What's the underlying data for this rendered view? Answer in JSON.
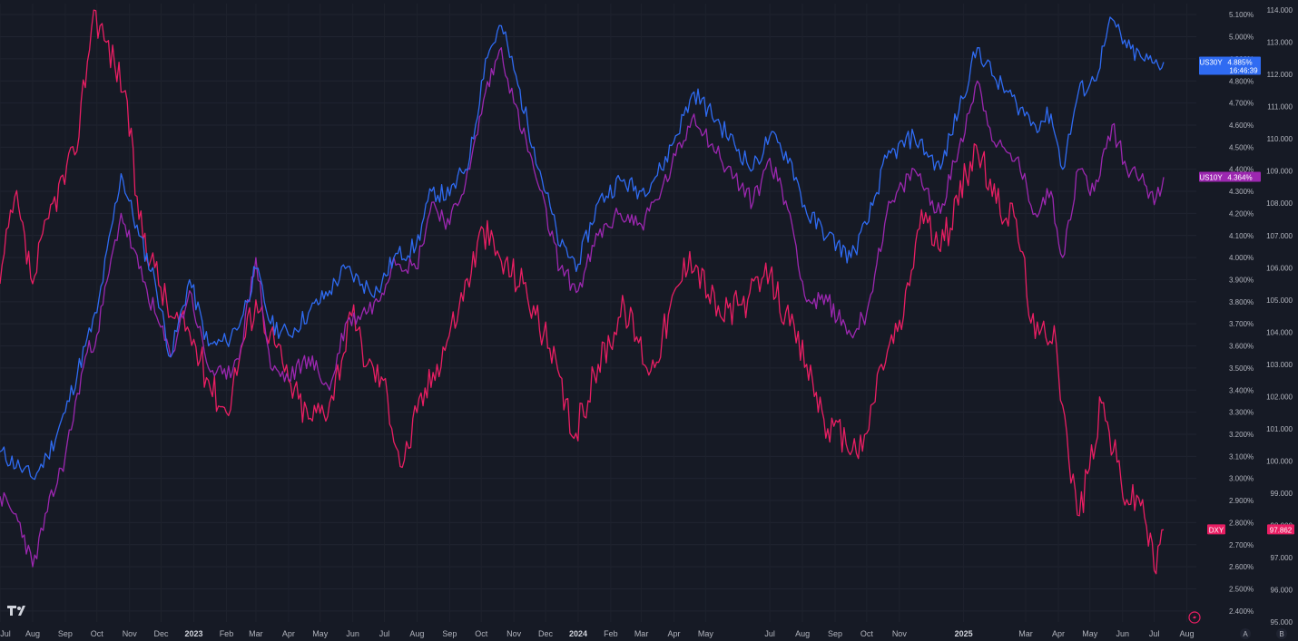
{
  "chart_data": {
    "type": "line",
    "x_axis": {
      "labels": [
        "Jul",
        "Aug",
        "Sep",
        "Oct",
        "Nov",
        "Dec",
        "2023",
        "Feb",
        "Mar",
        "Apr",
        "May",
        "Jun",
        "Jul",
        "Aug",
        "Sep",
        "Oct",
        "Nov",
        "Dec",
        "2024",
        "Feb",
        "Mar",
        "Apr",
        "May",
        "Jul",
        "Aug",
        "Sep",
        "Oct",
        "Nov",
        "2025",
        "Mar",
        "Apr",
        "May",
        "Jun",
        "Jul",
        "Aug"
      ],
      "year_labels": [
        "2023",
        "2024",
        "2025"
      ],
      "start": "2022-07-01",
      "end": "2025-08-10"
    },
    "y_axis_yield": {
      "unit": "%",
      "ylim": [
        2.35,
        5.15
      ],
      "ticks": [
        "5.100%",
        "5.000%",
        "4.900%",
        "4.800%",
        "4.700%",
        "4.600%",
        "4.500%",
        "4.400%",
        "4.300%",
        "4.200%",
        "4.100%",
        "4.000%",
        "3.900%",
        "3.800%",
        "3.700%",
        "3.600%",
        "3.500%",
        "3.400%",
        "3.300%",
        "3.200%",
        "3.100%",
        "3.000%",
        "2.900%",
        "2.800%",
        "2.700%",
        "2.600%",
        "2.500%",
        "2.400%"
      ]
    },
    "y_axis_index": {
      "ylim": [
        95.0,
        114.2
      ],
      "ticks": [
        "114.000",
        "113.000",
        "112.000",
        "111.000",
        "110.000",
        "109.000",
        "108.000",
        "107.000",
        "106.000",
        "105.000",
        "104.000",
        "103.000",
        "102.000",
        "101.000",
        "100.000",
        "99.000",
        "98.000",
        "97.000",
        "96.000",
        "95.000"
      ]
    },
    "grid": true,
    "series": [
      {
        "name": "US30Y",
        "axis": "yield",
        "color": "#2f6bf2",
        "last_label": "4.885%",
        "countdown": "16:46:39",
        "points": [
          [
            "2022-07-01",
            3.12
          ],
          [
            "2022-07-20",
            3.05
          ],
          [
            "2022-08-01",
            3.0
          ],
          [
            "2022-08-15",
            3.1
          ],
          [
            "2022-09-01",
            3.3
          ],
          [
            "2022-09-20",
            3.6
          ],
          [
            "2022-10-01",
            3.75
          ],
          [
            "2022-10-24",
            4.38
          ],
          [
            "2022-11-10",
            4.1
          ],
          [
            "2022-11-25",
            3.9
          ],
          [
            "2022-12-10",
            3.55
          ],
          [
            "2022-12-28",
            3.9
          ],
          [
            "2023-01-15",
            3.6
          ],
          [
            "2023-02-01",
            3.62
          ],
          [
            "2023-02-15",
            3.72
          ],
          [
            "2023-03-01",
            3.95
          ],
          [
            "2023-03-15",
            3.7
          ],
          [
            "2023-04-01",
            3.65
          ],
          [
            "2023-04-20",
            3.75
          ],
          [
            "2023-05-10",
            3.85
          ],
          [
            "2023-05-25",
            3.95
          ],
          [
            "2023-06-10",
            3.88
          ],
          [
            "2023-06-25",
            3.85
          ],
          [
            "2023-07-10",
            4.0
          ],
          [
            "2023-07-31",
            4.05
          ],
          [
            "2023-08-15",
            4.3
          ],
          [
            "2023-09-01",
            4.28
          ],
          [
            "2023-09-20",
            4.45
          ],
          [
            "2023-10-05",
            4.9
          ],
          [
            "2023-10-20",
            5.05
          ],
          [
            "2023-11-01",
            4.85
          ],
          [
            "2023-11-20",
            4.5
          ],
          [
            "2023-12-15",
            4.05
          ],
          [
            "2024-01-01",
            3.97
          ],
          [
            "2024-01-20",
            4.25
          ],
          [
            "2024-02-10",
            4.35
          ],
          [
            "2024-03-01",
            4.3
          ],
          [
            "2024-03-20",
            4.4
          ],
          [
            "2024-04-20",
            4.75
          ],
          [
            "2024-05-15",
            4.6
          ],
          [
            "2024-06-15",
            4.4
          ],
          [
            "2024-07-01",
            4.55
          ],
          [
            "2024-07-20",
            4.45
          ],
          [
            "2024-08-05",
            4.2
          ],
          [
            "2024-08-25",
            4.1
          ],
          [
            "2024-09-16",
            4.0
          ],
          [
            "2024-10-01",
            4.15
          ],
          [
            "2024-10-20",
            4.45
          ],
          [
            "2024-11-15",
            4.55
          ],
          [
            "2024-12-10",
            4.4
          ],
          [
            "2025-01-14",
            4.95
          ],
          [
            "2025-02-01",
            4.8
          ],
          [
            "2025-02-20",
            4.7
          ],
          [
            "2025-03-10",
            4.6
          ],
          [
            "2025-03-25",
            4.65
          ],
          [
            "2025-04-05",
            4.4
          ],
          [
            "2025-04-20",
            4.75
          ],
          [
            "2025-05-05",
            4.8
          ],
          [
            "2025-05-22",
            5.08
          ],
          [
            "2025-06-05",
            4.95
          ],
          [
            "2025-06-20",
            4.9
          ],
          [
            "2025-07-01",
            4.88
          ],
          [
            "2025-07-10",
            4.885
          ]
        ]
      },
      {
        "name": "US10Y",
        "axis": "yield",
        "color": "#9c27b0",
        "last_label": "4.364%",
        "points": [
          [
            "2022-07-01",
            2.92
          ],
          [
            "2022-07-20",
            2.8
          ],
          [
            "2022-08-01",
            2.6
          ],
          [
            "2022-08-15",
            2.85
          ],
          [
            "2022-09-01",
            3.1
          ],
          [
            "2022-09-20",
            3.55
          ],
          [
            "2022-10-01",
            3.65
          ],
          [
            "2022-10-24",
            4.2
          ],
          [
            "2022-11-10",
            3.95
          ],
          [
            "2022-11-25",
            3.75
          ],
          [
            "2022-12-10",
            3.55
          ],
          [
            "2022-12-28",
            3.85
          ],
          [
            "2023-01-15",
            3.5
          ],
          [
            "2023-02-01",
            3.45
          ],
          [
            "2023-02-15",
            3.6
          ],
          [
            "2023-03-01",
            4.0
          ],
          [
            "2023-03-15",
            3.5
          ],
          [
            "2023-04-01",
            3.45
          ],
          [
            "2023-04-20",
            3.55
          ],
          [
            "2023-05-10",
            3.4
          ],
          [
            "2023-05-25",
            3.7
          ],
          [
            "2023-06-10",
            3.75
          ],
          [
            "2023-06-25",
            3.8
          ],
          [
            "2023-07-10",
            4.0
          ],
          [
            "2023-07-31",
            3.95
          ],
          [
            "2023-08-15",
            4.25
          ],
          [
            "2023-09-01",
            4.15
          ],
          [
            "2023-09-20",
            4.4
          ],
          [
            "2023-10-05",
            4.75
          ],
          [
            "2023-10-20",
            4.95
          ],
          [
            "2023-11-01",
            4.7
          ],
          [
            "2023-11-20",
            4.4
          ],
          [
            "2023-12-15",
            3.95
          ],
          [
            "2024-01-01",
            3.85
          ],
          [
            "2024-01-20",
            4.1
          ],
          [
            "2024-02-10",
            4.2
          ],
          [
            "2024-03-01",
            4.15
          ],
          [
            "2024-03-20",
            4.3
          ],
          [
            "2024-04-20",
            4.65
          ],
          [
            "2024-05-15",
            4.45
          ],
          [
            "2024-06-15",
            4.25
          ],
          [
            "2024-07-01",
            4.45
          ],
          [
            "2024-07-20",
            4.2
          ],
          [
            "2024-08-05",
            3.8
          ],
          [
            "2024-08-25",
            3.8
          ],
          [
            "2024-09-16",
            3.65
          ],
          [
            "2024-10-01",
            3.75
          ],
          [
            "2024-10-20",
            4.2
          ],
          [
            "2024-11-15",
            4.4
          ],
          [
            "2024-12-10",
            4.2
          ],
          [
            "2025-01-14",
            4.8
          ],
          [
            "2025-02-01",
            4.5
          ],
          [
            "2025-02-20",
            4.45
          ],
          [
            "2025-03-10",
            4.2
          ],
          [
            "2025-03-25",
            4.3
          ],
          [
            "2025-04-05",
            4.0
          ],
          [
            "2025-04-20",
            4.4
          ],
          [
            "2025-05-05",
            4.3
          ],
          [
            "2025-05-22",
            4.6
          ],
          [
            "2025-06-05",
            4.4
          ],
          [
            "2025-06-20",
            4.38
          ],
          [
            "2025-07-01",
            4.24
          ],
          [
            "2025-07-10",
            4.364
          ]
        ]
      },
      {
        "name": "DXY",
        "axis": "index",
        "color": "#e91e63",
        "last_label": "97.862",
        "points": [
          [
            "2022-07-01",
            105.5
          ],
          [
            "2022-07-15",
            108.2
          ],
          [
            "2022-08-01",
            105.5
          ],
          [
            "2022-08-20",
            108.0
          ],
          [
            "2022-09-10",
            109.5
          ],
          [
            "2022-09-28",
            114.0
          ],
          [
            "2022-10-10",
            113.0
          ],
          [
            "2022-10-28",
            111.5
          ],
          [
            "2022-11-10",
            107.5
          ],
          [
            "2022-11-25",
            106.0
          ],
          [
            "2022-12-10",
            104.5
          ],
          [
            "2022-12-28",
            104.0
          ],
          [
            "2023-01-15",
            102.5
          ],
          [
            "2023-02-01",
            101.5
          ],
          [
            "2023-02-15",
            103.5
          ],
          [
            "2023-03-01",
            105.0
          ],
          [
            "2023-03-15",
            104.0
          ],
          [
            "2023-04-01",
            102.5
          ],
          [
            "2023-04-20",
            101.3
          ],
          [
            "2023-05-10",
            101.8
          ],
          [
            "2023-05-31",
            104.5
          ],
          [
            "2023-06-15",
            103.0
          ],
          [
            "2023-06-30",
            102.5
          ],
          [
            "2023-07-18",
            99.8
          ],
          [
            "2023-08-01",
            101.5
          ],
          [
            "2023-08-20",
            103.0
          ],
          [
            "2023-09-10",
            104.8
          ],
          [
            "2023-10-03",
            107.2
          ],
          [
            "2023-10-20",
            106.2
          ],
          [
            "2023-11-10",
            105.5
          ],
          [
            "2023-12-05",
            103.5
          ],
          [
            "2023-12-28",
            100.7
          ],
          [
            "2024-01-20",
            103.0
          ],
          [
            "2024-02-14",
            104.8
          ],
          [
            "2024-03-10",
            102.8
          ],
          [
            "2024-04-16",
            106.5
          ],
          [
            "2024-05-15",
            104.5
          ],
          [
            "2024-06-10",
            105.0
          ],
          [
            "2024-07-01",
            105.8
          ],
          [
            "2024-07-20",
            104.2
          ],
          [
            "2024-08-05",
            103.0
          ],
          [
            "2024-08-25",
            101.0
          ],
          [
            "2024-09-27",
            100.3
          ],
          [
            "2024-10-15",
            103.0
          ],
          [
            "2024-11-05",
            104.5
          ],
          [
            "2024-11-22",
            107.8
          ],
          [
            "2024-12-10",
            106.5
          ],
          [
            "2025-01-13",
            109.8
          ],
          [
            "2025-02-01",
            108.0
          ],
          [
            "2025-02-20",
            107.5
          ],
          [
            "2025-03-10",
            103.8
          ],
          [
            "2025-03-28",
            104.2
          ],
          [
            "2025-04-11",
            100.0
          ],
          [
            "2025-04-21",
            98.3
          ],
          [
            "2025-05-12",
            101.8
          ],
          [
            "2025-06-05",
            98.8
          ],
          [
            "2025-06-20",
            98.8
          ],
          [
            "2025-07-01",
            96.6
          ],
          [
            "2025-07-10",
            97.862
          ]
        ]
      }
    ]
  }
}
